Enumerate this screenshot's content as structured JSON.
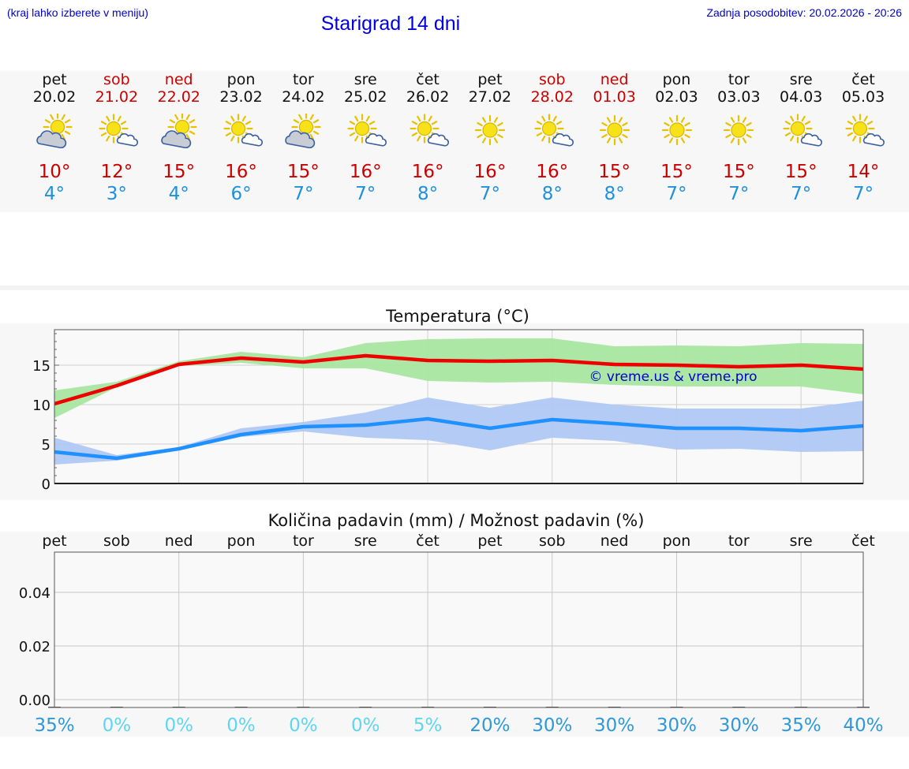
{
  "header": {
    "hint": "(kraj lahko izberete v meniju)",
    "title": "Starigrad 14 dni",
    "updated": "Zadnja posodobitev: 20.02.2026 - 20:26"
  },
  "days": [
    {
      "name": "pet",
      "date": "20.02",
      "weekend": false,
      "icon": "sun-cloud-icon",
      "tmax": "10°",
      "tmin": "4°"
    },
    {
      "name": "sob",
      "date": "21.02",
      "weekend": true,
      "icon": "sun-small-cloud-icon",
      "tmax": "12°",
      "tmin": "3°"
    },
    {
      "name": "ned",
      "date": "22.02",
      "weekend": true,
      "icon": "sun-cloud-icon",
      "tmax": "15°",
      "tmin": "4°"
    },
    {
      "name": "pon",
      "date": "23.02",
      "weekend": false,
      "icon": "sun-small-cloud-icon",
      "tmax": "16°",
      "tmin": "6°"
    },
    {
      "name": "tor",
      "date": "24.02",
      "weekend": false,
      "icon": "sun-cloud-icon",
      "tmax": "15°",
      "tmin": "7°"
    },
    {
      "name": "sre",
      "date": "25.02",
      "weekend": false,
      "icon": "sun-small-cloud-icon",
      "tmax": "16°",
      "tmin": "7°"
    },
    {
      "name": "čet",
      "date": "26.02",
      "weekend": false,
      "icon": "sun-small-cloud-icon",
      "tmax": "16°",
      "tmin": "8°"
    },
    {
      "name": "pet",
      "date": "27.02",
      "weekend": false,
      "icon": "sun-icon",
      "tmax": "16°",
      "tmin": "7°"
    },
    {
      "name": "sob",
      "date": "28.02",
      "weekend": true,
      "icon": "sun-small-cloud-icon",
      "tmax": "16°",
      "tmin": "8°"
    },
    {
      "name": "ned",
      "date": "01.03",
      "weekend": true,
      "icon": "sun-icon",
      "tmax": "15°",
      "tmin": "8°"
    },
    {
      "name": "pon",
      "date": "02.03",
      "weekend": false,
      "icon": "sun-icon",
      "tmax": "15°",
      "tmin": "7°"
    },
    {
      "name": "tor",
      "date": "03.03",
      "weekend": false,
      "icon": "sun-icon",
      "tmax": "15°",
      "tmin": "7°"
    },
    {
      "name": "sre",
      "date": "04.03",
      "weekend": false,
      "icon": "sun-small-cloud-icon",
      "tmax": "15°",
      "tmin": "7°"
    },
    {
      "name": "čet",
      "date": "05.03",
      "weekend": false,
      "icon": "sun-small-cloud-icon",
      "tmax": "14°",
      "tmin": "7°"
    }
  ],
  "colors": {
    "max_line": "#ee0000",
    "max_band": "#a8e6a0",
    "min_line": "#1e90ff",
    "min_band": "#b0c8f4",
    "weekend": "#cc0000",
    "normal": "#111111",
    "min_text": "#1e90e0",
    "watermark": "#0000cc",
    "prob_high": "#2f98d8",
    "prob_low": "#5dd6ee"
  },
  "chart_data": [
    {
      "type": "line",
      "title": "Temperatura (°C)",
      "watermark": "© vreme.us & vreme.pro",
      "x": [
        0,
        1,
        2,
        3,
        4,
        5,
        6,
        7,
        8,
        9,
        10,
        11,
        12,
        13
      ],
      "ylim": [
        0,
        19.5
      ],
      "yticks": [
        0,
        5,
        10,
        15
      ],
      "series": [
        {
          "name": "max",
          "values": [
            10.1,
            12.4,
            15.1,
            15.9,
            15.4,
            16.2,
            15.6,
            15.5,
            15.6,
            15.1,
            15.0,
            14.8,
            15.0,
            14.5
          ],
          "lower": [
            8.3,
            12.2,
            14.9,
            15.3,
            14.6,
            14.6,
            13.0,
            12.8,
            12.9,
            12.5,
            12.3,
            12.3,
            12.3,
            11.3
          ],
          "upper": [
            11.8,
            12.9,
            15.5,
            16.7,
            16.0,
            17.8,
            18.3,
            18.4,
            18.4,
            17.4,
            17.5,
            17.4,
            17.8,
            17.7
          ]
        },
        {
          "name": "min",
          "values": [
            4.0,
            3.2,
            4.4,
            6.2,
            7.2,
            7.4,
            8.2,
            7.0,
            8.1,
            7.6,
            7.0,
            7.0,
            6.7,
            7.3
          ],
          "lower": [
            2.4,
            2.9,
            4.2,
            5.9,
            6.6,
            5.8,
            5.5,
            4.2,
            5.8,
            5.4,
            4.3,
            4.4,
            4.0,
            4.1
          ],
          "upper": [
            5.8,
            3.6,
            4.6,
            7.0,
            7.8,
            9.0,
            10.9,
            9.6,
            10.9,
            10.0,
            9.5,
            9.5,
            9.5,
            10.5
          ]
        }
      ]
    },
    {
      "type": "bar",
      "title": "Količina padavin (mm) / Možnost padavin (%)",
      "categories": [
        "pet",
        "sob",
        "ned",
        "pon",
        "tor",
        "sre",
        "čet",
        "pet",
        "sob",
        "ned",
        "pon",
        "tor",
        "sre",
        "čet"
      ],
      "values": [
        0,
        0,
        0,
        0,
        0,
        0,
        0,
        0,
        0,
        0,
        0,
        0,
        0,
        0
      ],
      "ylim": [
        0,
        0.055
      ],
      "yticks": [
        "0.00",
        "0.02",
        "0.04"
      ],
      "ytick_values": [
        0,
        0.02,
        0.04
      ],
      "probability": [
        "35%",
        "0%",
        "0%",
        "0%",
        "0%",
        "0%",
        "5%",
        "20%",
        "30%",
        "30%",
        "30%",
        "30%",
        "35%",
        "40%"
      ]
    }
  ]
}
